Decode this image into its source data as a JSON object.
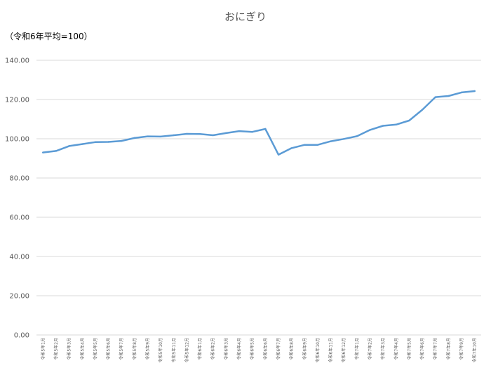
{
  "chart_data": {
    "type": "line",
    "title": "おにぎり",
    "ylabel": "（令和6年平均=100）",
    "xlabel": "",
    "ylim": [
      0,
      140
    ],
    "yticks": [
      "0.00",
      "20.00",
      "40.00",
      "60.00",
      "80.00",
      "100.00",
      "120.00",
      "140.00"
    ],
    "grid": true,
    "legend": "none",
    "line_color": "#5B9BD5",
    "categories": [
      "令和5年1月",
      "令和5年2月",
      "令和5年3月",
      "令和5年4月",
      "令和5年5月",
      "令和5年6月",
      "令和5年7月",
      "令和5年8月",
      "令和5年9月",
      "令和5年10月",
      "令和5年11月",
      "令和5年12月",
      "令和6年1月",
      "令和6年2月",
      "令和6年3月",
      "令和6年4月",
      "令和6年5月",
      "令和6年6月",
      "令和6年7月",
      "令和6年8月",
      "令和6年9月",
      "令和6年10月",
      "令和6年11月",
      "令和6年12月",
      "令和7年1月",
      "令和7年2月",
      "令和7年3月",
      "令和7年4月",
      "令和7年5月",
      "令和7年6月",
      "令和7年7月",
      "令和7年8月",
      "令和7年9月",
      "令和7年10月"
    ],
    "values": [
      93.0,
      93.8,
      96.3,
      97.3,
      98.3,
      98.4,
      98.9,
      100.4,
      101.2,
      101.1,
      101.8,
      102.5,
      102.4,
      101.8,
      102.9,
      103.9,
      103.5,
      105.0,
      91.9,
      95.2,
      96.9,
      96.9,
      98.7,
      99.9,
      101.3,
      104.5,
      106.6,
      107.2,
      109.3,
      114.8,
      121.2,
      121.8,
      123.6,
      124.3
    ]
  }
}
